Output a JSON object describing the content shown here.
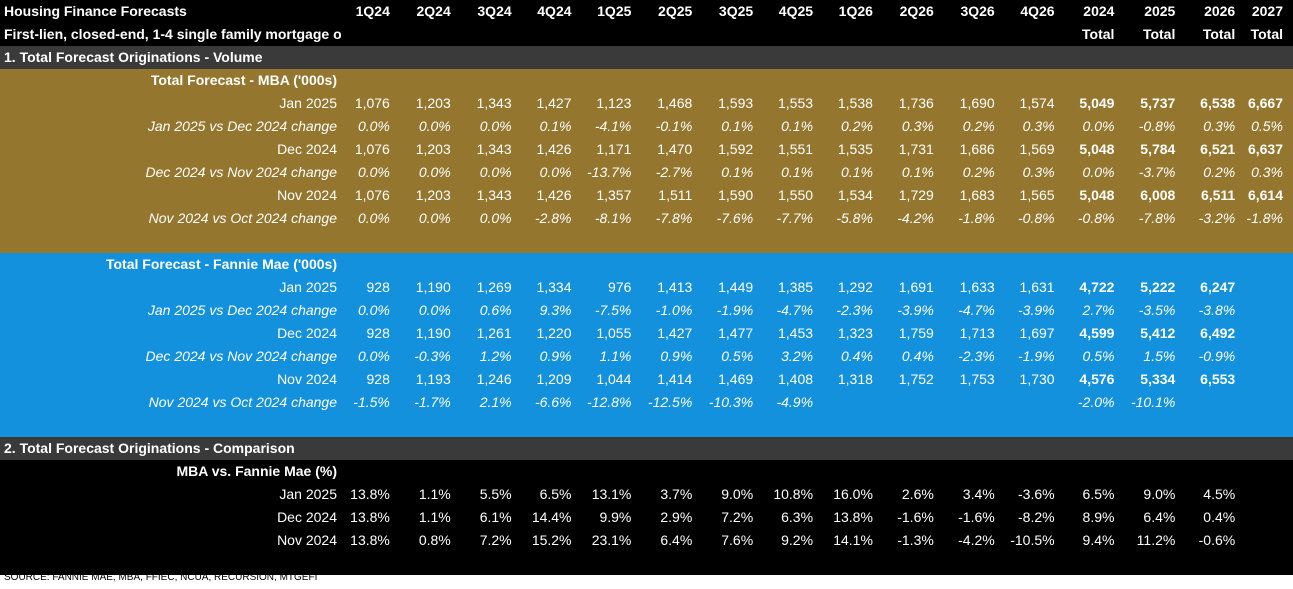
{
  "title": "Housing Finance Forecasts",
  "subtitle": "First-lien, closed-end, 1-4 single family mortgage originations",
  "columns": [
    "1Q24",
    "2Q24",
    "3Q24",
    "4Q24",
    "1Q25",
    "2Q25",
    "3Q25",
    "4Q25",
    "1Q26",
    "2Q26",
    "3Q26",
    "4Q26",
    "2024",
    "2025",
    "2026",
    "2027"
  ],
  "total_word": "Total",
  "section1": "1. Total Forecast Originations - Volume",
  "mba_header": "Total Forecast - MBA ('000s)",
  "mba_rows": [
    {
      "label": "Jan 2025",
      "values": [
        "1,076",
        "1,203",
        "1,343",
        "1,427",
        "1,123",
        "1,468",
        "1,593",
        "1,553",
        "1,538",
        "1,736",
        "1,690",
        "1,574",
        "5,049",
        "5,737",
        "6,538",
        "6,667"
      ]
    },
    {
      "label": "Jan 2025 vs Dec 2024 change",
      "values": [
        "0.0%",
        "0.0%",
        "0.0%",
        "0.1%",
        "-4.1%",
        "-0.1%",
        "0.1%",
        "0.1%",
        "0.2%",
        "0.3%",
        "0.2%",
        "0.3%",
        "0.0%",
        "-0.8%",
        "0.3%",
        "0.5%"
      ]
    },
    {
      "label": "Dec 2024",
      "values": [
        "1,076",
        "1,203",
        "1,343",
        "1,426",
        "1,171",
        "1,470",
        "1,592",
        "1,551",
        "1,535",
        "1,731",
        "1,686",
        "1,569",
        "5,048",
        "5,784",
        "6,521",
        "6,637"
      ]
    },
    {
      "label": "Dec 2024 vs Nov 2024 change",
      "values": [
        "0.0%",
        "0.0%",
        "0.0%",
        "0.0%",
        "-13.7%",
        "-2.7%",
        "0.1%",
        "0.1%",
        "0.1%",
        "0.1%",
        "0.2%",
        "0.3%",
        "0.0%",
        "-3.7%",
        "0.2%",
        "0.3%"
      ]
    },
    {
      "label": "Nov 2024",
      "values": [
        "1,076",
        "1,203",
        "1,343",
        "1,426",
        "1,357",
        "1,511",
        "1,590",
        "1,550",
        "1,534",
        "1,729",
        "1,683",
        "1,565",
        "5,048",
        "6,008",
        "6,511",
        "6,614"
      ]
    },
    {
      "label": "Nov 2024 vs Oct 2024 change",
      "values": [
        "0.0%",
        "0.0%",
        "0.0%",
        "-2.8%",
        "-8.1%",
        "-7.8%",
        "-7.6%",
        "-7.7%",
        "-5.8%",
        "-4.2%",
        "-1.8%",
        "-0.8%",
        "-0.8%",
        "-7.8%",
        "-3.2%",
        "-1.8%"
      ]
    }
  ],
  "fnma_header": "Total Forecast - Fannie Mae ('000s)",
  "fnma_rows": [
    {
      "label": "Jan 2025",
      "values": [
        "928",
        "1,190",
        "1,269",
        "1,334",
        "976",
        "1,413",
        "1,449",
        "1,385",
        "1,292",
        "1,691",
        "1,633",
        "1,631",
        "4,722",
        "5,222",
        "6,247",
        ""
      ]
    },
    {
      "label": "Jan 2025 vs Dec 2024 change",
      "values": [
        "0.0%",
        "0.0%",
        "0.6%",
        "9.3%",
        "-7.5%",
        "-1.0%",
        "-1.9%",
        "-4.7%",
        "-2.3%",
        "-3.9%",
        "-4.7%",
        "-3.9%",
        "2.7%",
        "-3.5%",
        "-3.8%",
        ""
      ]
    },
    {
      "label": "Dec 2024",
      "values": [
        "928",
        "1,190",
        "1,261",
        "1,220",
        "1,055",
        "1,427",
        "1,477",
        "1,453",
        "1,323",
        "1,759",
        "1,713",
        "1,697",
        "4,599",
        "5,412",
        "6,492",
        ""
      ]
    },
    {
      "label": "Dec 2024 vs Nov 2024 change",
      "values": [
        "0.0%",
        "-0.3%",
        "1.2%",
        "0.9%",
        "1.1%",
        "0.9%",
        "0.5%",
        "3.2%",
        "0.4%",
        "0.4%",
        "-2.3%",
        "-1.9%",
        "0.5%",
        "1.5%",
        "-0.9%",
        ""
      ]
    },
    {
      "label": "Nov 2024",
      "values": [
        "928",
        "1,193",
        "1,246",
        "1,209",
        "1,044",
        "1,414",
        "1,469",
        "1,408",
        "1,318",
        "1,752",
        "1,753",
        "1,730",
        "4,576",
        "5,334",
        "6,553",
        ""
      ]
    },
    {
      "label": "Nov 2024 vs Oct 2024 change",
      "values": [
        "-1.5%",
        "-1.7%",
        "2.1%",
        "-6.6%",
        "-12.8%",
        "-12.5%",
        "-10.3%",
        "-4.9%",
        "",
        "",
        "",
        "",
        "-2.0%",
        "-10.1%",
        "",
        ""
      ]
    }
  ],
  "section2": "2. Total Forecast Originations - Comparison",
  "cmp_header": "MBA vs. Fannie Mae (%)",
  "cmp_rows": [
    {
      "label": "Jan 2025",
      "values": [
        "13.8%",
        "1.1%",
        "5.5%",
        "6.5%",
        "13.1%",
        "3.7%",
        "9.0%",
        "10.8%",
        "16.0%",
        "2.6%",
        "3.4%",
        "-3.6%",
        "6.5%",
        "9.0%",
        "4.5%",
        ""
      ]
    },
    {
      "label": "Dec 2024",
      "values": [
        "13.8%",
        "1.1%",
        "6.1%",
        "14.4%",
        "9.9%",
        "2.9%",
        "7.2%",
        "6.3%",
        "13.8%",
        "-1.6%",
        "-1.6%",
        "-8.2%",
        "8.9%",
        "6.4%",
        "0.4%",
        ""
      ]
    },
    {
      "label": "Nov 2024",
      "values": [
        "13.8%",
        "0.8%",
        "7.2%",
        "15.2%",
        "23.1%",
        "6.4%",
        "7.6%",
        "9.2%",
        "14.1%",
        "-1.3%",
        "-4.2%",
        "-10.5%",
        "9.4%",
        "11.2%",
        "-0.6%",
        ""
      ]
    }
  ],
  "source": "SOURCE: FANNIE MAE, MBA, FFIEC, NCUA, RECURSION, MTGEFI"
}
